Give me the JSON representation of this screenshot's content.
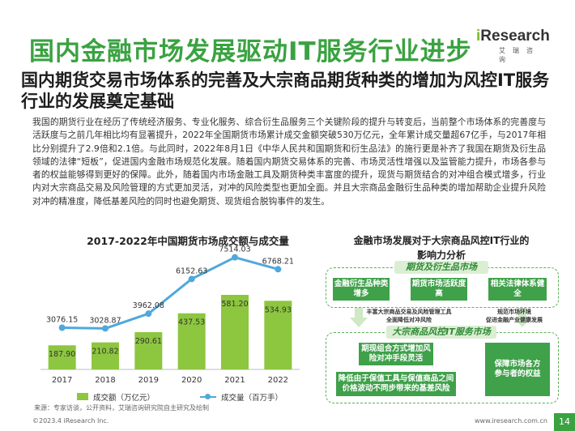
{
  "header": {
    "title": "国内金融市场发展驱动IT服务行业进步",
    "logo_brand": "iResearch",
    "logo_sub": "艾瑞咨询"
  },
  "subtitle": "国内期货交易市场体系的完善及大宗商品期货种类的增加为风控IT服务行业的发展奠定基础",
  "body": "我国的期货行业在经历了传统经济服务、专业化服务、综合衍生品服务三个关键阶段的提升与转变后，当前整个市场体系的完善度与活跃度与之前几年相比均有显著提升，2022年全国期货市场累计成交金额突破530万亿元，全年累计成交量超67亿手，与2017年相比分别提升了2.9倍和2.1倍。与此同时，2022年8月1日《中华人民共和国期货和衍生品法》的施行更是补齐了我国在期货及衍生品领域的法律“短板”，促进国内金融市场规范化发展。随着国内期货交易体系的完善、市场灵活性增强以及监管能力提升，市场各参与者的权益能够得到更好的保障。此外，随着国内市场金融工具及期货种类丰富度的提升，现货与期货结合的对冲组合模式增多，行业内对大宗商品交易及风险管理的方式更加灵活，对冲的风险类型也更加全面。并且大宗商品金融衍生品种类的增加帮助企业提升风险对冲的精准度，降低基差风险的同时也避免期货、现货组合脱钩事件的发生。",
  "chart_data": {
    "type": "bar",
    "title": "2017-2022年中国期货市场成交额与成交量",
    "categories": [
      "2017",
      "2018",
      "2019",
      "2020",
      "2021",
      "2022"
    ],
    "series": [
      {
        "name": "成交额（万亿元）",
        "type": "bar",
        "values": [
          187.9,
          210.82,
          290.61,
          437.53,
          581.2,
          534.93
        ],
        "labels": [
          "187.90",
          "210.82",
          "290.61",
          "437.53",
          "581.20",
          "534.93"
        ]
      },
      {
        "name": "成交量（百万手）",
        "type": "line",
        "values": [
          3076.15,
          3028.87,
          3962.08,
          6152.63,
          7514.03,
          6768.21
        ],
        "labels": [
          "3076.15",
          "3028.87",
          "3962.08",
          "6152.63",
          "7514.03",
          "6768.21"
        ]
      }
    ],
    "bar_color": "#8dc63f",
    "line_color": "#4fa8dc",
    "legend_position": "bottom"
  },
  "source": "来源：专家访谈，公开资料，艾瑞咨询研究院自主研究及绘制",
  "right_diagram": {
    "title_line1": "金融市场发展对于大宗商品风控IT行业的",
    "title_line2": "影响力分析",
    "panel1_title": "期货及衍生品市场",
    "panel1_boxes": [
      "金融衍生品种类增多",
      "期货市场活跃度高",
      "相关法律体系健全"
    ],
    "mid_left_line1": "丰富大宗商品交易及风险管理工具",
    "mid_left_line2": "全面降低对冲风险",
    "mid_right_line1": "规范市场环境",
    "mid_right_line2": "促进金融产业健康发展",
    "panel2_title": "大宗商品风控IT服务市场",
    "panel2_box1": "期现组合方式增加风险对冲手段灵活",
    "panel2_box2": "降低由于保值工具与保值商品之间价格波动不同步带来的基差风险",
    "panel2_box3": "保障市场各方参与者的权益"
  },
  "footer": {
    "copyright": "©2023.4 iResearch Inc.",
    "website": "www.iresearch.com.cn",
    "page": "14"
  }
}
